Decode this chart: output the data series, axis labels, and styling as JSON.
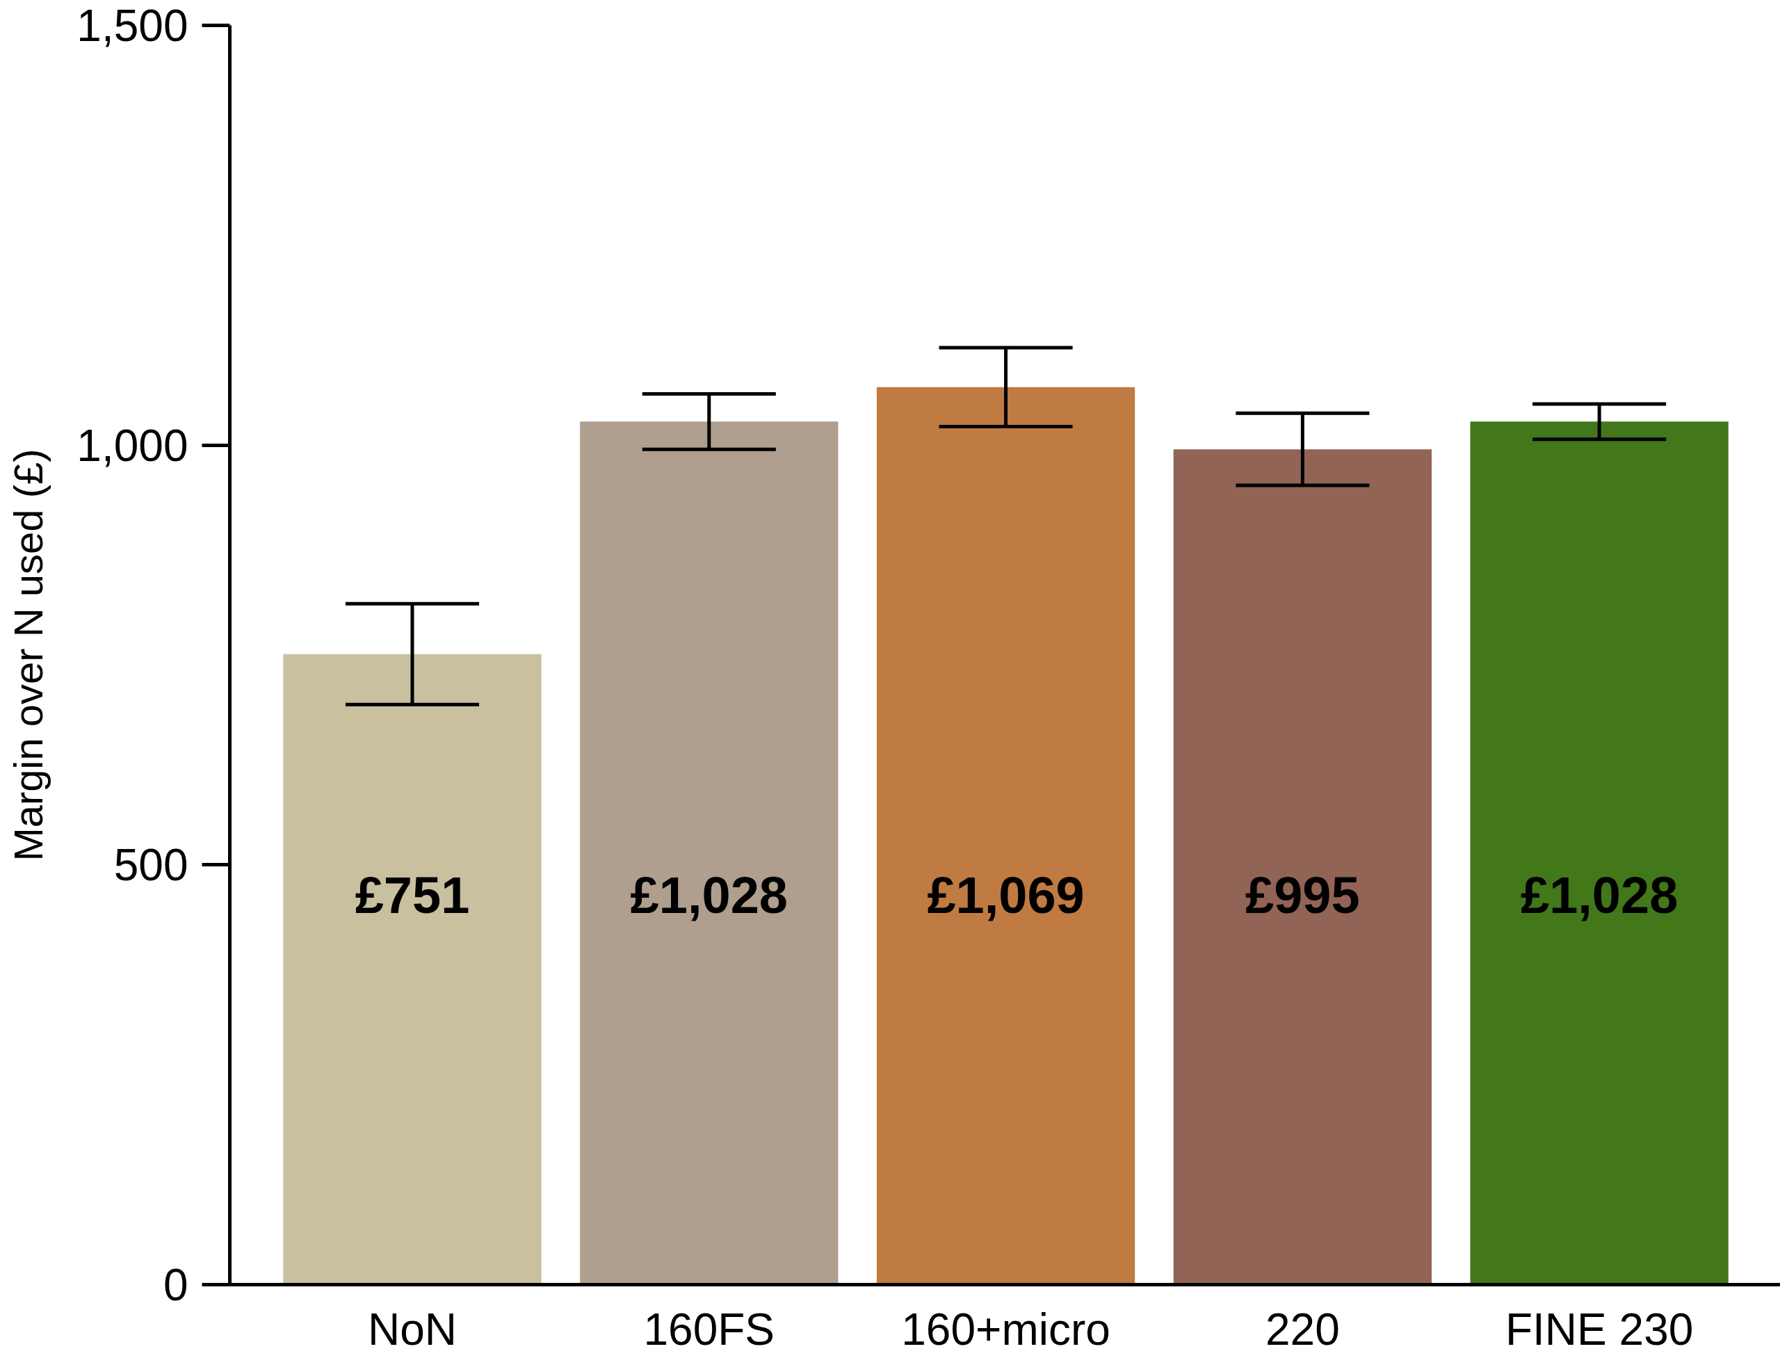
{
  "chart_data": {
    "type": "bar",
    "ylabel": "Margin over N used (£)",
    "categories": [
      "NoN",
      "160FS",
      "160+micro",
      "220",
      "FINE 230"
    ],
    "values": [
      751,
      1028,
      1069,
      995,
      1028
    ],
    "colors": [
      "#c9c0a0",
      "#b09f8e",
      "#c07b42",
      "#916455",
      "#42781a"
    ],
    "errors": [
      60,
      33,
      47,
      43,
      21
    ],
    "value_labels": [
      "£751",
      "£1,028",
      "£1,069",
      "£995",
      "£1,028"
    ],
    "ylim": [
      0,
      1500
    ],
    "yticks": [
      0,
      500,
      {
        "value": 1000,
        "label": "1,000"
      },
      {
        "value": 1500,
        "label": "1,500"
      }
    ],
    "grid": false
  }
}
